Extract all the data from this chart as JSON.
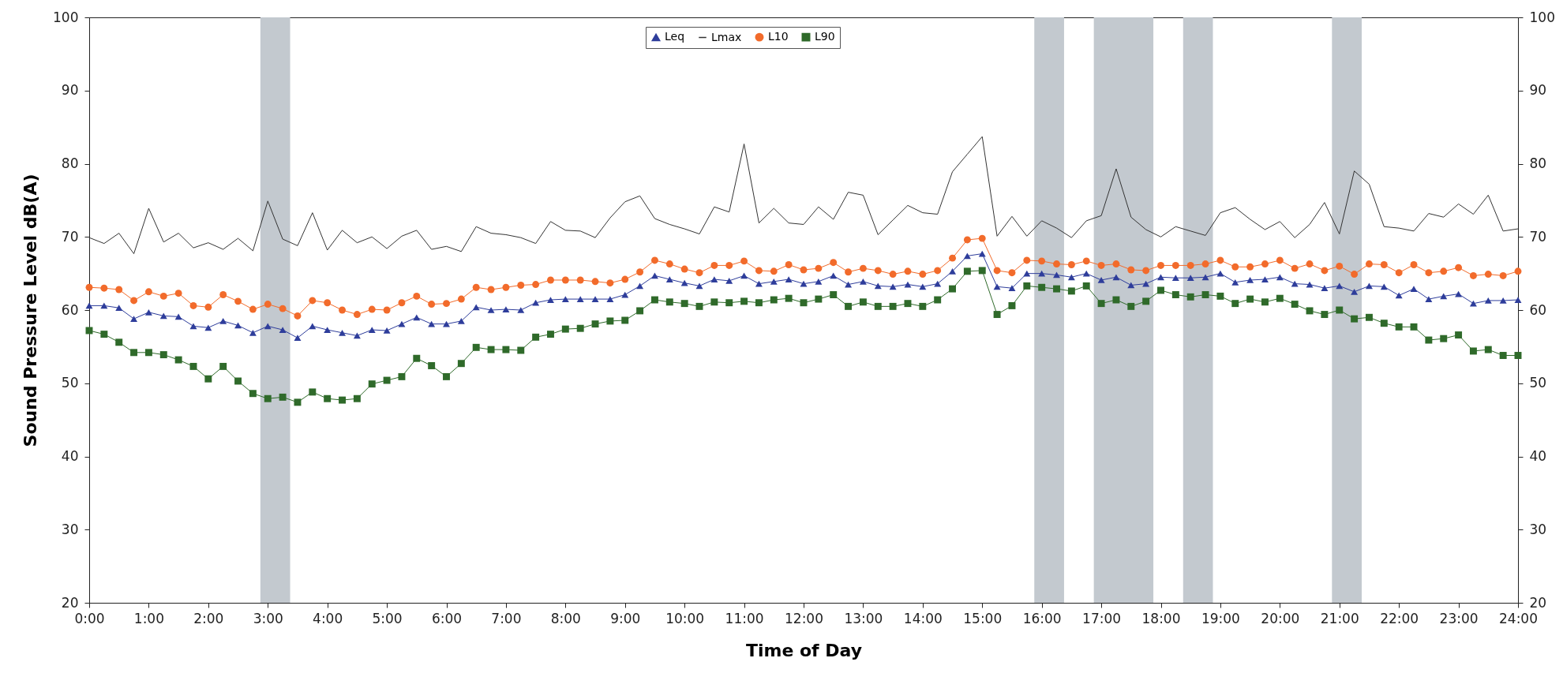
{
  "chart_data": {
    "type": "line",
    "xlabel": "Time of Day",
    "ylabel": "Sound Pressure Level dB(A)",
    "x": [
      0,
      0.25,
      0.5,
      0.75,
      1,
      1.25,
      1.5,
      1.75,
      2,
      2.25,
      2.5,
      2.75,
      3,
      3.25,
      3.5,
      3.75,
      4,
      4.25,
      4.5,
      4.75,
      5,
      5.25,
      5.5,
      5.75,
      6,
      6.25,
      6.5,
      6.75,
      7,
      7.25,
      7.5,
      7.75,
      8,
      8.25,
      8.5,
      8.75,
      9,
      9.25,
      9.5,
      9.75,
      10,
      10.25,
      10.5,
      10.75,
      11,
      11.25,
      11.5,
      11.75,
      12,
      12.25,
      12.5,
      12.75,
      13,
      13.25,
      13.5,
      13.75,
      14,
      14.25,
      14.5,
      14.75,
      15,
      15.25,
      15.5,
      15.75,
      16,
      16.25,
      16.5,
      16.75,
      17,
      17.25,
      17.5,
      17.75,
      18,
      18.25,
      18.5,
      18.75,
      19,
      19.25,
      19.5,
      19.75,
      20,
      20.25,
      20.5,
      20.75,
      21,
      21.25,
      21.5,
      21.75,
      22,
      22.25,
      22.5,
      22.75,
      23,
      23.25,
      23.5,
      23.75,
      24
    ],
    "series": [
      {
        "name": "Leq",
        "color": "#2e3d9b",
        "marker": "triangle",
        "values": [
          60.6,
          60.6,
          60.3,
          58.8,
          59.7,
          59.2,
          59.1,
          57.8,
          57.6,
          58.5,
          57.9,
          56.9,
          57.8,
          57.3,
          56.2,
          57.8,
          57.3,
          56.9,
          56.5,
          57.3,
          57.2,
          58.1,
          59.0,
          58.1,
          58.1,
          58.5,
          60.4,
          60.0,
          60.1,
          60.0,
          61.0,
          61.4,
          61.5,
          61.5,
          61.5,
          61.5,
          62.1,
          63.3,
          64.7,
          64.2,
          63.7,
          63.3,
          64.2,
          64.0,
          64.7,
          63.6,
          63.9,
          64.2,
          63.6,
          63.9,
          64.7,
          63.5,
          63.9,
          63.3,
          63.2,
          63.5,
          63.2,
          63.6,
          65.3,
          67.4,
          67.7,
          63.2,
          63.0,
          65.0,
          65.0,
          64.8,
          64.5,
          65.0,
          64.1,
          64.5,
          63.4,
          63.6,
          64.5,
          64.4,
          64.4,
          64.5,
          65.0,
          63.8,
          64.1,
          64.2,
          64.5,
          63.6,
          63.5,
          63.0,
          63.3,
          62.5,
          63.3,
          63.2,
          62.0,
          62.9,
          61.5,
          61.9,
          62.2,
          60.9,
          61.3,
          61.3,
          61.4
        ]
      },
      {
        "name": "Lmax",
        "color": "#333333",
        "marker": "none",
        "values": [
          69.9,
          69.1,
          70.5,
          67.7,
          73.9,
          69.3,
          70.5,
          68.5,
          69.2,
          68.3,
          69.8,
          68.1,
          74.9,
          69.7,
          68.8,
          73.3,
          68.2,
          70.9,
          69.2,
          70.0,
          68.4,
          70.1,
          70.9,
          68.3,
          68.7,
          68.0,
          71.4,
          70.5,
          70.3,
          69.9,
          69.1,
          72.1,
          70.9,
          70.8,
          69.9,
          72.6,
          74.8,
          75.6,
          72.5,
          71.7,
          71.1,
          70.4,
          74.1,
          73.4,
          82.7,
          71.9,
          73.9,
          71.9,
          71.7,
          74.1,
          72.4,
          76.1,
          75.7,
          70.3,
          72.3,
          74.3,
          73.3,
          73.1,
          78.9,
          81.3,
          83.7,
          70.1,
          72.8,
          70.1,
          72.2,
          71.2,
          69.9,
          72.2,
          72.9,
          79.3,
          72.7,
          71.0,
          70.0,
          71.4,
          70.8,
          70.2,
          73.3,
          74.0,
          72.4,
          71.0,
          72.1,
          69.9,
          71.7,
          74.7,
          70.4,
          79.0,
          77.2,
          71.4,
          71.2,
          70.8,
          73.2,
          72.7,
          74.5,
          73.1,
          75.7,
          70.8,
          71.1
        ]
      },
      {
        "name": "L10",
        "color": "#f26b2b",
        "marker": "circle",
        "values": [
          63.1,
          63.0,
          62.8,
          61.3,
          62.5,
          61.9,
          62.3,
          60.6,
          60.4,
          62.1,
          61.2,
          60.1,
          60.8,
          60.2,
          59.2,
          61.3,
          61.0,
          60.0,
          59.4,
          60.1,
          60.0,
          61.0,
          61.9,
          60.8,
          60.9,
          61.5,
          63.1,
          62.8,
          63.1,
          63.4,
          63.5,
          64.1,
          64.1,
          64.1,
          63.9,
          63.7,
          64.2,
          65.2,
          66.8,
          66.3,
          65.6,
          65.1,
          66.1,
          66.1,
          66.7,
          65.4,
          65.3,
          66.2,
          65.5,
          65.7,
          66.5,
          65.2,
          65.7,
          65.4,
          64.9,
          65.3,
          64.9,
          65.4,
          67.1,
          69.6,
          69.8,
          65.4,
          65.1,
          66.8,
          66.7,
          66.3,
          66.2,
          66.7,
          66.1,
          66.3,
          65.5,
          65.4,
          66.1,
          66.1,
          66.1,
          66.3,
          66.8,
          65.9,
          65.9,
          66.3,
          66.8,
          65.7,
          66.3,
          65.4,
          66.0,
          64.9,
          66.3,
          66.2,
          65.1,
          66.2,
          65.1,
          65.3,
          65.8,
          64.7,
          64.9,
          64.7,
          65.3
        ]
      },
      {
        "name": "L90",
        "color": "#2f6a2a",
        "marker": "square",
        "values": [
          57.2,
          56.7,
          55.6,
          54.2,
          54.2,
          53.9,
          53.2,
          52.3,
          50.6,
          52.3,
          50.3,
          48.6,
          47.9,
          48.1,
          47.4,
          48.8,
          47.9,
          47.7,
          47.9,
          49.9,
          50.4,
          50.9,
          53.4,
          52.4,
          50.9,
          52.7,
          54.9,
          54.6,
          54.6,
          54.5,
          56.3,
          56.7,
          57.4,
          57.5,
          58.1,
          58.5,
          58.6,
          59.9,
          61.4,
          61.1,
          60.9,
          60.5,
          61.1,
          61.0,
          61.2,
          61.0,
          61.4,
          61.6,
          61.0,
          61.5,
          62.1,
          60.5,
          61.1,
          60.5,
          60.5,
          60.9,
          60.5,
          61.4,
          62.9,
          65.3,
          65.4,
          59.4,
          60.6,
          63.3,
          63.1,
          62.9,
          62.6,
          63.3,
          60.9,
          61.4,
          60.5,
          61.2,
          62.7,
          62.1,
          61.8,
          62.1,
          61.9,
          60.9,
          61.5,
          61.1,
          61.6,
          60.8,
          59.9,
          59.4,
          60.0,
          58.8,
          59.0,
          58.2,
          57.7,
          57.7,
          55.9,
          56.1,
          56.6,
          54.4,
          54.6,
          53.8,
          53.8
        ]
      }
    ],
    "xlim": [
      0,
      24
    ],
    "xticks": [
      {
        "value": 0,
        "label": "0:00"
      },
      {
        "value": 1,
        "label": "1:00"
      },
      {
        "value": 2,
        "label": "2:00"
      },
      {
        "value": 3,
        "label": "3:00"
      },
      {
        "value": 4,
        "label": "4:00"
      },
      {
        "value": 5,
        "label": "5:00"
      },
      {
        "value": 6,
        "label": "6:00"
      },
      {
        "value": 7,
        "label": "7:00"
      },
      {
        "value": 8,
        "label": "8:00"
      },
      {
        "value": 9,
        "label": "9:00"
      },
      {
        "value": 10,
        "label": "10:00"
      },
      {
        "value": 11,
        "label": "11:00"
      },
      {
        "value": 12,
        "label": "12:00"
      },
      {
        "value": 13,
        "label": "13:00"
      },
      {
        "value": 14,
        "label": "14:00"
      },
      {
        "value": 15,
        "label": "15:00"
      },
      {
        "value": 16,
        "label": "16:00"
      },
      {
        "value": 17,
        "label": "17:00"
      },
      {
        "value": 18,
        "label": "18:00"
      },
      {
        "value": 19,
        "label": "19:00"
      },
      {
        "value": 20,
        "label": "20:00"
      },
      {
        "value": 21,
        "label": "21:00"
      },
      {
        "value": 22,
        "label": "22:00"
      },
      {
        "value": 23,
        "label": "23:00"
      },
      {
        "value": 24,
        "label": "24:00"
      }
    ],
    "ylim": [
      20,
      100
    ],
    "yticks": [
      20,
      30,
      40,
      50,
      60,
      70,
      80,
      90,
      100
    ],
    "y2lim": [
      20,
      100
    ],
    "y2ticks": [
      20,
      30,
      40,
      50,
      60,
      70,
      80,
      90,
      100
    ],
    "bands": [
      {
        "axis": "x",
        "from": 2.875,
        "to": 3.375,
        "color": "#c3c9cf"
      },
      {
        "axis": "x",
        "from": 15.875,
        "to": 16.375,
        "color": "#c3c9cf"
      },
      {
        "axis": "x",
        "from": 16.875,
        "to": 17.875,
        "color": "#c3c9cf"
      },
      {
        "axis": "x",
        "from": 18.375,
        "to": 18.875,
        "color": "#c3c9cf"
      },
      {
        "axis": "x",
        "from": 20.875,
        "to": 21.375,
        "color": "#c3c9cf"
      }
    ],
    "grid": false,
    "legend": "top"
  }
}
